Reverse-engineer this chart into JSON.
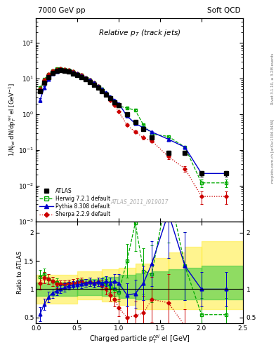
{
  "title_top_left": "7000 GeV pp",
  "title_top_right": "Soft QCD",
  "main_title": "Relative p_{T} (track jets)",
  "watermark": "ATLAS_2011_I919017",
  "right_label": "mcplots.cern.ch [arXiv:1306.3436]",
  "right_label2": "Rivet 3.1.10, ≥ 3.2M events",
  "ylabel_main": "1/N$_{jet}$ dN/dp$^{rel}_{T}$ el [GeV$^{-1}$]",
  "ylabel_ratio": "Ratio to ATLAS",
  "xlabel": "Charged particle p$_{T}^{rel}$ el [GeV]",
  "xlim": [
    0.0,
    2.5
  ],
  "ylim_main": [
    0.001,
    500
  ],
  "ylim_ratio": [
    0.4,
    2.2
  ],
  "atlas_x": [
    0.05,
    0.1,
    0.15,
    0.2,
    0.25,
    0.3,
    0.35,
    0.4,
    0.45,
    0.5,
    0.55,
    0.6,
    0.65,
    0.7,
    0.75,
    0.8,
    0.85,
    0.9,
    0.95,
    1.0,
    1.1,
    1.2,
    1.3,
    1.4,
    1.6,
    1.8,
    2.0,
    2.3
  ],
  "atlas_y": [
    4.5,
    7.5,
    11.0,
    14.5,
    16.5,
    17.0,
    16.5,
    15.5,
    14.0,
    12.5,
    11.0,
    9.5,
    8.0,
    6.8,
    5.5,
    4.5,
    3.5,
    2.8,
    2.2,
    1.8,
    1.0,
    0.6,
    0.38,
    0.22,
    0.085,
    0.085,
    0.022,
    0.022
  ],
  "atlas_yerr": [
    0.5,
    0.6,
    0.8,
    1.0,
    1.0,
    1.0,
    1.0,
    0.9,
    0.8,
    0.7,
    0.6,
    0.5,
    0.4,
    0.35,
    0.28,
    0.22,
    0.18,
    0.14,
    0.11,
    0.09,
    0.06,
    0.04,
    0.03,
    0.018,
    0.012,
    0.012,
    0.004,
    0.004
  ],
  "herwig_x": [
    0.05,
    0.1,
    0.15,
    0.2,
    0.25,
    0.3,
    0.35,
    0.4,
    0.45,
    0.5,
    0.55,
    0.6,
    0.65,
    0.7,
    0.75,
    0.8,
    0.85,
    0.9,
    0.95,
    1.0,
    1.1,
    1.2,
    1.3,
    1.4,
    1.6,
    1.8,
    2.0,
    2.3
  ],
  "herwig_y": [
    5.5,
    9.5,
    13.0,
    16.5,
    18.5,
    18.5,
    18.0,
    17.0,
    15.5,
    14.0,
    12.5,
    10.5,
    9.0,
    7.5,
    6.2,
    5.0,
    3.8,
    2.9,
    2.2,
    1.7,
    1.5,
    1.3,
    0.5,
    0.28,
    0.24,
    0.12,
    0.012,
    0.012
  ],
  "herwig_yerr": [
    0.4,
    0.6,
    0.8,
    1.0,
    1.0,
    1.0,
    0.9,
    0.9,
    0.8,
    0.7,
    0.6,
    0.5,
    0.4,
    0.35,
    0.28,
    0.22,
    0.18,
    0.14,
    0.11,
    0.09,
    0.07,
    0.06,
    0.03,
    0.022,
    0.02,
    0.012,
    0.003,
    0.003
  ],
  "pythia_x": [
    0.05,
    0.1,
    0.15,
    0.2,
    0.25,
    0.3,
    0.35,
    0.4,
    0.45,
    0.5,
    0.55,
    0.6,
    0.65,
    0.7,
    0.75,
    0.8,
    0.85,
    0.9,
    0.95,
    1.0,
    1.1,
    1.2,
    1.3,
    1.4,
    1.6,
    1.8,
    2.0,
    2.3
  ],
  "pythia_y": [
    2.5,
    5.5,
    9.5,
    13.5,
    16.0,
    17.0,
    17.0,
    16.5,
    15.0,
    13.5,
    12.0,
    10.5,
    9.0,
    7.5,
    6.2,
    5.0,
    4.0,
    3.1,
    2.5,
    2.0,
    0.9,
    0.55,
    0.42,
    0.32,
    0.2,
    0.12,
    0.022,
    0.022
  ],
  "pythia_yerr": [
    0.3,
    0.5,
    0.7,
    0.9,
    1.0,
    1.0,
    0.9,
    0.9,
    0.8,
    0.7,
    0.6,
    0.5,
    0.4,
    0.35,
    0.28,
    0.22,
    0.18,
    0.14,
    0.11,
    0.09,
    0.055,
    0.038,
    0.028,
    0.022,
    0.015,
    0.01,
    0.004,
    0.004
  ],
  "sherpa_x": [
    0.05,
    0.1,
    0.15,
    0.2,
    0.25,
    0.3,
    0.35,
    0.4,
    0.45,
    0.5,
    0.55,
    0.6,
    0.65,
    0.7,
    0.75,
    0.8,
    0.85,
    0.9,
    0.95,
    1.0,
    1.1,
    1.2,
    1.3,
    1.4,
    1.6,
    1.8,
    2.0,
    2.3
  ],
  "sherpa_y": [
    5.0,
    9.0,
    13.0,
    16.5,
    18.0,
    18.5,
    18.0,
    17.0,
    15.5,
    14.0,
    12.5,
    10.5,
    9.0,
    7.5,
    6.2,
    4.8,
    3.5,
    2.5,
    1.8,
    1.2,
    0.5,
    0.32,
    0.22,
    0.18,
    0.065,
    0.03,
    0.005,
    0.005
  ],
  "sherpa_yerr": [
    0.4,
    0.6,
    0.8,
    1.0,
    1.0,
    1.0,
    0.9,
    0.9,
    0.8,
    0.7,
    0.6,
    0.5,
    0.4,
    0.35,
    0.28,
    0.22,
    0.18,
    0.13,
    0.1,
    0.07,
    0.04,
    0.028,
    0.02,
    0.015,
    0.01,
    0.006,
    0.002,
    0.002
  ],
  "color_atlas": "#000000",
  "color_herwig": "#00aa00",
  "color_pythia": "#0000cc",
  "color_sherpa": "#cc0000",
  "ratio_herwig_y": [
    1.22,
    1.27,
    1.18,
    1.14,
    1.12,
    1.09,
    1.09,
    1.1,
    1.11,
    1.12,
    1.14,
    1.11,
    1.13,
    1.1,
    1.13,
    1.11,
    1.09,
    1.04,
    1.0,
    0.94,
    1.5,
    2.17,
    1.32,
    1.27,
    2.82,
    1.41,
    0.55,
    0.55
  ],
  "ratio_pythia_y": [
    0.56,
    0.73,
    0.86,
    0.93,
    0.97,
    1.0,
    1.03,
    1.06,
    1.07,
    1.08,
    1.09,
    1.11,
    1.13,
    1.1,
    1.13,
    1.11,
    1.14,
    1.11,
    1.14,
    1.11,
    0.9,
    0.92,
    1.11,
    1.45,
    2.35,
    1.41,
    1.0,
    1.0
  ],
  "ratio_sherpa_y": [
    1.11,
    1.2,
    1.18,
    1.14,
    1.09,
    1.09,
    1.09,
    1.1,
    1.11,
    1.12,
    1.14,
    1.11,
    1.13,
    1.1,
    1.13,
    1.07,
    1.0,
    0.89,
    0.82,
    0.67,
    0.5,
    0.53,
    0.58,
    0.82,
    0.76,
    0.35,
    0.23,
    0.23
  ],
  "ratio_herwig_yerr": [
    0.12,
    0.1,
    0.09,
    0.08,
    0.07,
    0.07,
    0.07,
    0.07,
    0.07,
    0.07,
    0.07,
    0.07,
    0.07,
    0.07,
    0.07,
    0.08,
    0.09,
    0.1,
    0.12,
    0.15,
    0.3,
    0.5,
    0.4,
    0.5,
    1.0,
    0.6,
    0.3,
    0.3
  ],
  "ratio_pythia_yerr": [
    0.12,
    0.1,
    0.09,
    0.08,
    0.07,
    0.07,
    0.07,
    0.07,
    0.07,
    0.07,
    0.07,
    0.07,
    0.07,
    0.07,
    0.07,
    0.08,
    0.09,
    0.1,
    0.12,
    0.15,
    0.2,
    0.25,
    0.3,
    0.4,
    0.8,
    0.6,
    0.3,
    0.3
  ],
  "ratio_sherpa_yerr": [
    0.12,
    0.1,
    0.09,
    0.08,
    0.07,
    0.07,
    0.07,
    0.07,
    0.07,
    0.07,
    0.07,
    0.07,
    0.07,
    0.07,
    0.07,
    0.08,
    0.09,
    0.1,
    0.12,
    0.15,
    0.2,
    0.25,
    0.3,
    0.4,
    0.5,
    0.3,
    0.15,
    0.15
  ],
  "band_x": [
    0.0,
    0.5,
    0.8,
    1.0,
    1.2,
    1.4,
    1.6,
    1.8,
    2.0,
    2.5
  ],
  "band_yellow_lo": [
    0.75,
    0.82,
    0.78,
    0.72,
    0.65,
    0.65,
    0.65,
    0.65,
    0.65,
    0.65
  ],
  "band_yellow_hi": [
    1.25,
    1.32,
    1.35,
    1.38,
    1.45,
    1.55,
    1.65,
    1.75,
    1.85,
    1.95
  ],
  "band_green_lo": [
    0.88,
    0.9,
    0.88,
    0.85,
    0.82,
    0.82,
    0.82,
    0.82,
    0.82,
    0.82
  ],
  "band_green_hi": [
    1.12,
    1.18,
    1.22,
    1.25,
    1.28,
    1.32,
    1.35,
    1.38,
    1.42,
    1.48
  ]
}
